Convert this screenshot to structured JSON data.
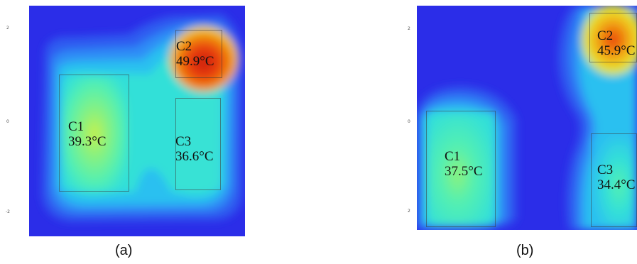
{
  "figure": {
    "panel_a": {
      "caption": "(a)",
      "y_ticks": [
        "2",
        "0",
        "-2"
      ],
      "components": [
        {
          "name": "C1",
          "temp": "39.3°C"
        },
        {
          "name": "C2",
          "temp": "49.9°C"
        },
        {
          "name": "C3",
          "temp": "36.6°C"
        }
      ]
    },
    "panel_b": {
      "caption": "(b)",
      "y_ticks": [
        "2",
        "0",
        "2"
      ],
      "components": [
        {
          "name": "C1",
          "temp": "37.5°C"
        },
        {
          "name": "C2",
          "temp": "45.9°C"
        },
        {
          "name": "C3",
          "temp": "34.4°C"
        }
      ]
    },
    "colormap": [
      "#2b2de8",
      "#2f5cf0",
      "#2f8df6",
      "#2cc0f0",
      "#33e0d8",
      "#55f0b0",
      "#8ef27a",
      "#c8f04a",
      "#f0d020",
      "#f08a10",
      "#e83a10",
      "#c81e10"
    ]
  }
}
